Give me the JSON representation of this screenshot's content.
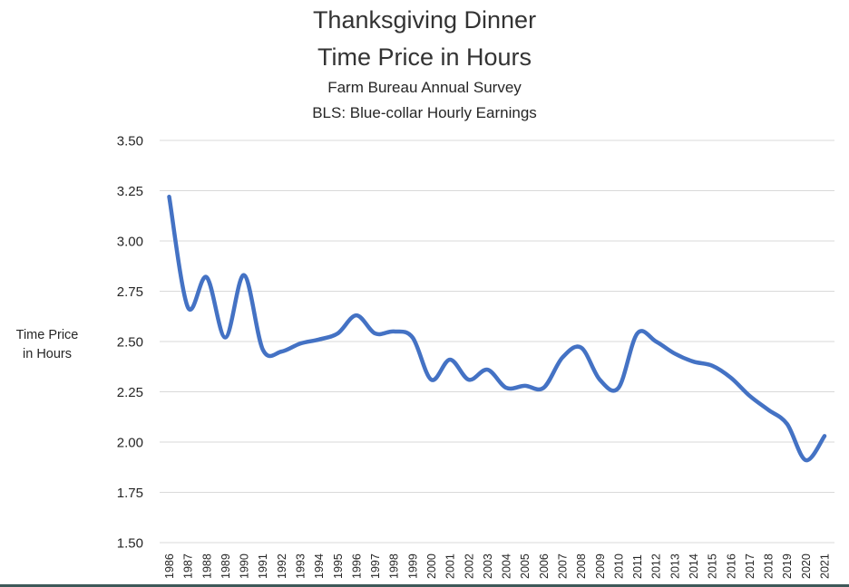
{
  "chart_data": {
    "type": "line",
    "title": "Thanksgiving Dinner",
    "title_line2": "Time Price in Hours",
    "subtitle": "Farm Bureau Annual Survey",
    "subtitle_line2": "BLS: Blue-collar Hourly Earnings",
    "xlabel": "",
    "ylabel": "Time Price in Hours",
    "ylabel_lines": [
      "Time Price",
      "in Hours"
    ],
    "ylim": [
      1.5,
      3.5
    ],
    "yticks": [
      "1.50",
      "1.75",
      "2.00",
      "2.25",
      "2.50",
      "2.75",
      "3.00",
      "3.25",
      "3.50"
    ],
    "grid": true,
    "legend": null,
    "smooth": true,
    "line_color": "#4472C4",
    "x": [
      "1986",
      "1987",
      "1988",
      "1989",
      "1990",
      "1991",
      "1992",
      "1993",
      "1994",
      "1995",
      "1996",
      "1997",
      "1998",
      "1999",
      "2000",
      "2001",
      "2002",
      "2003",
      "2004",
      "2005",
      "2006",
      "2007",
      "2008",
      "2009",
      "2010",
      "2011",
      "2012",
      "2013",
      "2014",
      "2015",
      "2016",
      "2017",
      "2018",
      "2019",
      "2020",
      "2021"
    ],
    "series": [
      {
        "name": "Time Price in Hours",
        "values": [
          3.22,
          2.67,
          2.82,
          2.52,
          2.83,
          2.46,
          2.45,
          2.49,
          2.51,
          2.54,
          2.63,
          2.54,
          2.55,
          2.52,
          2.31,
          2.41,
          2.31,
          2.36,
          2.27,
          2.28,
          2.27,
          2.42,
          2.47,
          2.31,
          2.27,
          2.54,
          2.5,
          2.44,
          2.4,
          2.38,
          2.32,
          2.23,
          2.16,
          2.09,
          1.91,
          2.03
        ]
      }
    ]
  }
}
